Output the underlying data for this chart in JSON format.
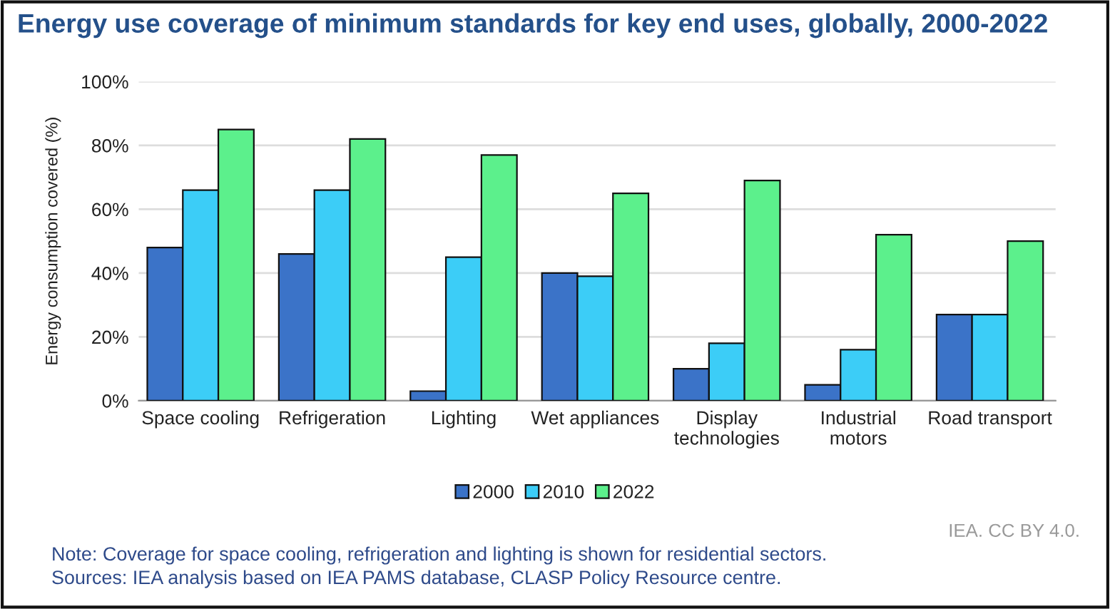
{
  "chart_data": {
    "type": "bar",
    "title": "Energy use coverage of minimum standards for key end uses, globally, 2000-2022",
    "ylabel": "Energy consumption covered (%)",
    "categories": [
      "Space cooling",
      "Refrigeration",
      "Lighting",
      "Wet appliances",
      "Display\ntechnologies",
      "Industrial\nmotors",
      "Road transport"
    ],
    "series": [
      {
        "name": "2000",
        "color": "#3b73c8",
        "values": [
          48,
          46,
          3,
          40,
          10,
          5,
          27
        ]
      },
      {
        "name": "2010",
        "color": "#3ccdf7",
        "values": [
          66,
          66,
          45,
          39,
          18,
          16,
          27
        ]
      },
      {
        "name": "2022",
        "color": "#5cf08c",
        "values": [
          85,
          82,
          77,
          65,
          69,
          52,
          50
        ]
      }
    ],
    "ylim": [
      0,
      100
    ],
    "yticks": [
      {
        "value": 0,
        "label": "0%"
      },
      {
        "value": 20,
        "label": "20%"
      },
      {
        "value": 40,
        "label": "40%"
      },
      {
        "value": 60,
        "label": "60%"
      },
      {
        "value": 80,
        "label": "80%"
      },
      {
        "value": 100,
        "label": "100%"
      }
    ],
    "grid": "y",
    "legend": "bottom",
    "annotations": [
      "IEA. CC BY 4.0.",
      "Note: Coverage for space cooling, refrigeration and lighting is shown for residential sectors.",
      "Sources: IEA analysis based on IEA PAMS database, CLASP Policy Resource centre."
    ]
  }
}
